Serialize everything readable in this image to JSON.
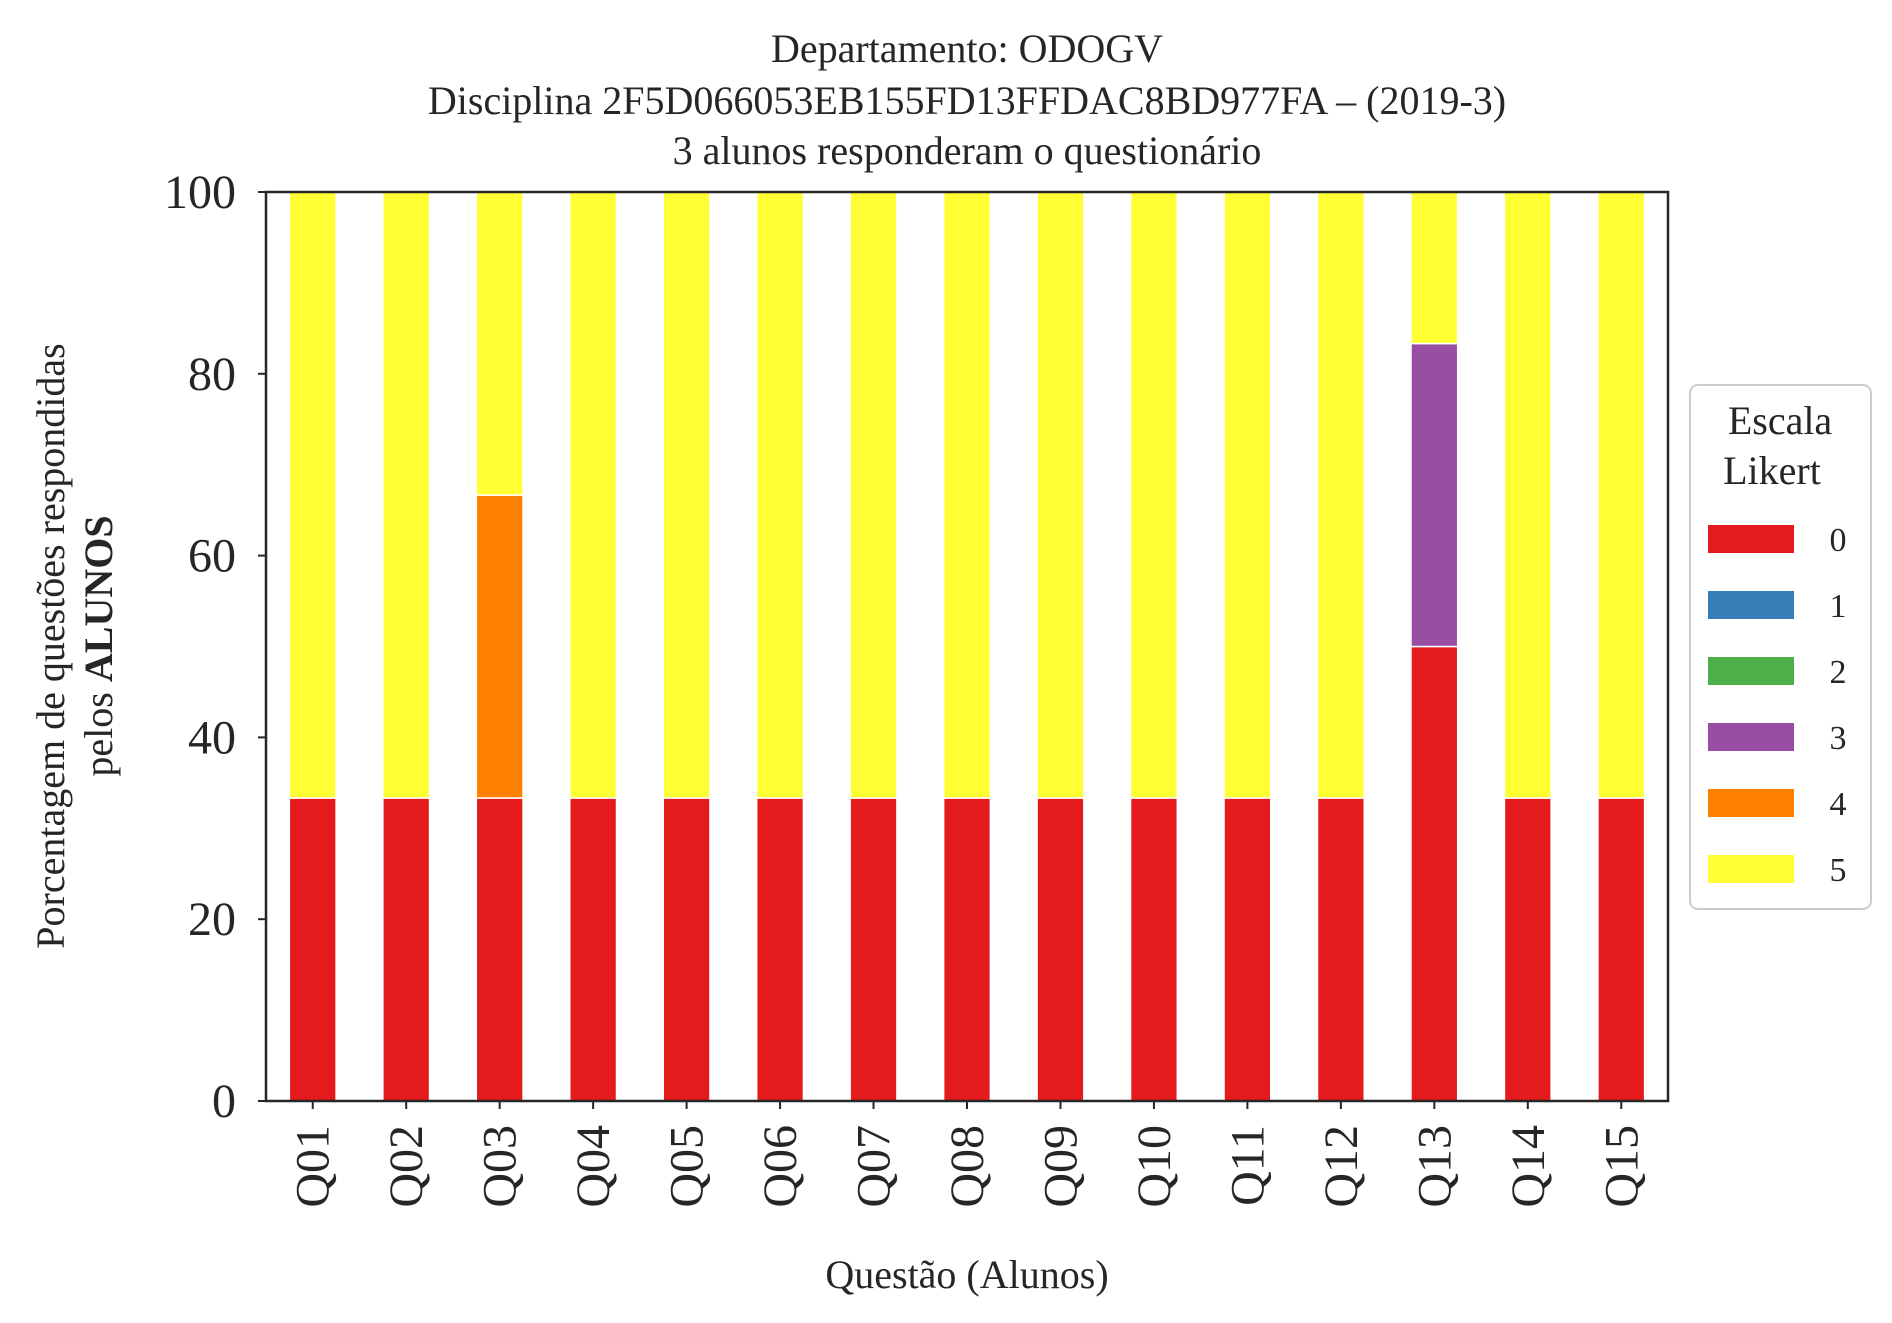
{
  "chart_data": {
    "type": "bar",
    "stacked": true,
    "title_lines": [
      "Departamento: ODOGV",
      "Disciplina 2F5D066053EB155FD13FFDAC8BD977FA – (2019-3)",
      "3 alunos responderam o questionário"
    ],
    "xlabel": "Questão (Alunos)",
    "ylabel_line1": "Porcentagem de questões respondidas",
    "ylabel_line2_prefix": "pelos ",
    "ylabel_line2_bold": "ALUNOS",
    "ylim": [
      0,
      100
    ],
    "yticks": [
      "0",
      "20",
      "40",
      "60",
      "80",
      "100"
    ],
    "grid": false,
    "legend_position": "right",
    "legend_title_lines": [
      "Escala",
      "Likert"
    ],
    "categories": [
      "Q01",
      "Q02",
      "Q03",
      "Q04",
      "Q05",
      "Q06",
      "Q07",
      "Q08",
      "Q09",
      "Q10",
      "Q11",
      "Q12",
      "Q13",
      "Q14",
      "Q15"
    ],
    "series": [
      {
        "name": "0",
        "color": "#e41a1c",
        "values": [
          33.33,
          33.33,
          33.33,
          33.33,
          33.33,
          33.33,
          33.33,
          33.33,
          33.33,
          33.33,
          33.33,
          33.33,
          50,
          33.33,
          33.33
        ]
      },
      {
        "name": "1",
        "color": "#377eb8",
        "values": [
          0,
          0,
          0,
          0,
          0,
          0,
          0,
          0,
          0,
          0,
          0,
          0,
          0,
          0,
          0
        ]
      },
      {
        "name": "2",
        "color": "#4daf4a",
        "values": [
          0,
          0,
          0,
          0,
          0,
          0,
          0,
          0,
          0,
          0,
          0,
          0,
          0,
          0,
          0
        ]
      },
      {
        "name": "3",
        "color": "#984ea3",
        "values": [
          0,
          0,
          0,
          0,
          0,
          0,
          0,
          0,
          0,
          0,
          0,
          0,
          33.33,
          0,
          0
        ]
      },
      {
        "name": "4",
        "color": "#ff7f00",
        "values": [
          0,
          0,
          33.33,
          0,
          0,
          0,
          0,
          0,
          0,
          0,
          0,
          0,
          0,
          0,
          0
        ]
      },
      {
        "name": "5",
        "color": "#ffff33",
        "values": [
          66.67,
          66.67,
          33.33,
          66.67,
          66.67,
          66.67,
          66.67,
          66.67,
          66.67,
          66.67,
          66.67,
          66.67,
          16.67,
          66.67,
          66.67
        ]
      }
    ]
  }
}
